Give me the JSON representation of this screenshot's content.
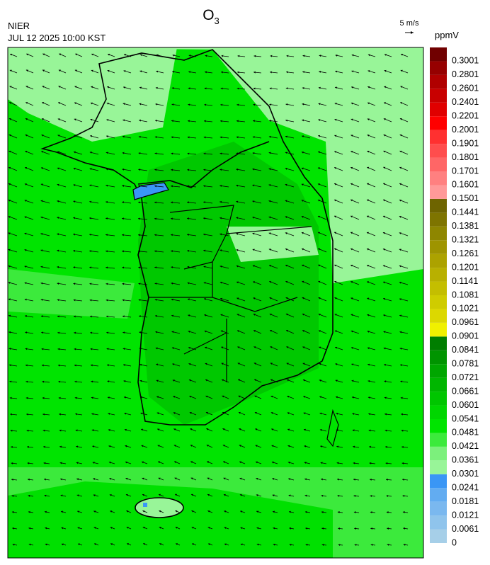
{
  "header": {
    "title": {
      "main": "O",
      "sub": "3"
    },
    "agency": "NIER",
    "datetime": "JUL 12 2025 10:00 KST",
    "wind_scale": "5 m/s"
  },
  "colorbar": {
    "unit": "ppmV",
    "labels": [
      0,
      0.0061,
      0.0121,
      0.0181,
      0.0241,
      0.0301,
      0.0361,
      0.0421,
      0.0481,
      0.0541,
      0.0601,
      0.0661,
      0.0721,
      0.0781,
      0.0841,
      0.0901,
      0.0961,
      0.1021,
      0.1081,
      0.1141,
      0.1201,
      0.1261,
      0.1321,
      0.1381,
      0.1441,
      0.1501,
      0.1601,
      0.1701,
      0.1801,
      0.1901,
      0.2001,
      0.2201,
      0.2401,
      0.2601,
      0.2801,
      0.3001
    ],
    "colors": [
      "#a6cfe8",
      "#8fc4ec",
      "#7ab8ef",
      "#62acf1",
      "#3a96f5",
      "#98f598",
      "#7cf07c",
      "#3cea3c",
      "#00e400",
      "#00d600",
      "#00c600",
      "#00b600",
      "#00a600",
      "#009400",
      "#007e00",
      "#f0f000",
      "#dcd800",
      "#cfcc00",
      "#c4be00",
      "#b8b000",
      "#aca200",
      "#9e9400",
      "#8e8600",
      "#7e7400",
      "#6e6400",
      "#ff9999",
      "#ff8080",
      "#ff6666",
      "#ff4d4d",
      "#ff3030",
      "#ff0000",
      "#e00000",
      "#c80000",
      "#b00000",
      "#960000",
      "#700000"
    ]
  }
}
